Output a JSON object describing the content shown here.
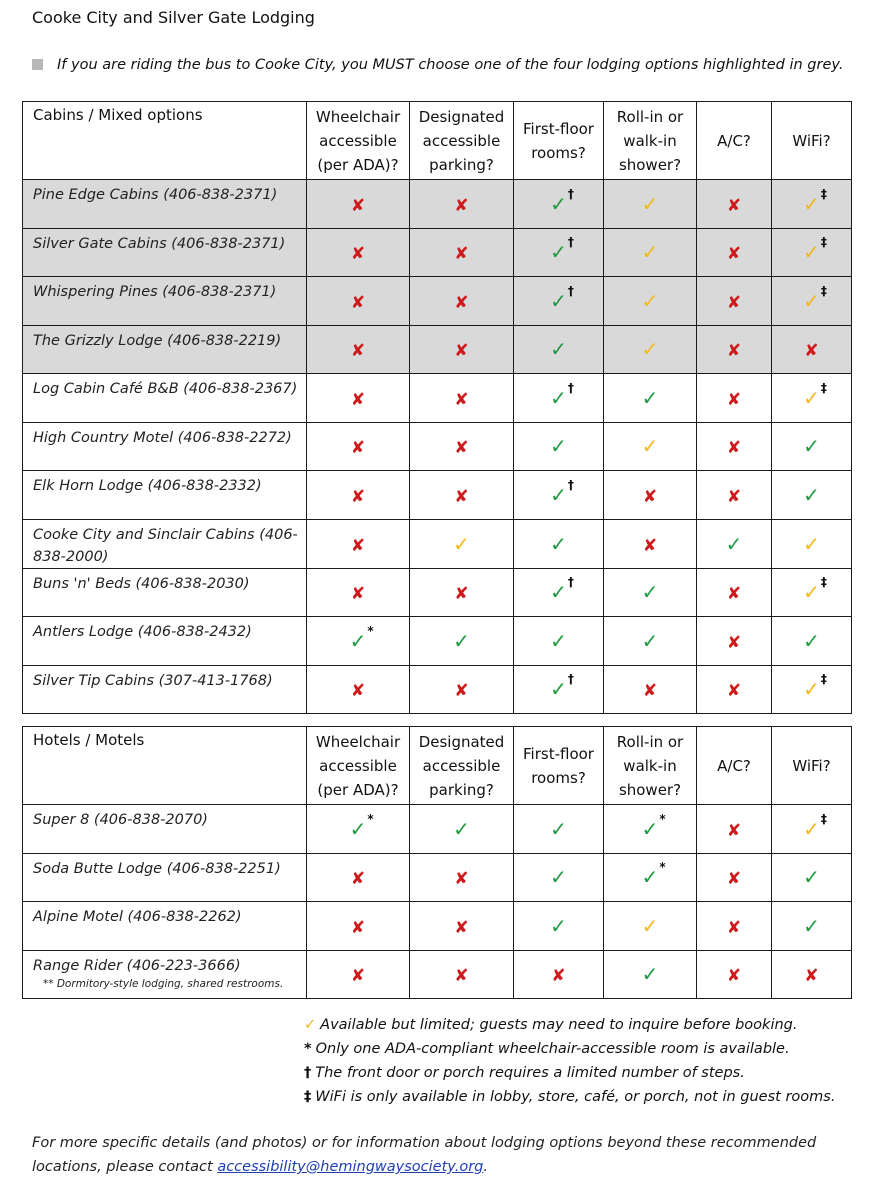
{
  "title": "Cooke City and Silver Gate Lodging",
  "note": "If you are riding the bus to Cooke City, you MUST choose one of the four lodging options highlighted in grey.",
  "headers": [
    "Wheelchair accessible (per ADA)?",
    "Designated accessible parking?",
    "First-floor rooms?",
    "Roll-in or walk-in shower?",
    "A/C?",
    "WiFi?"
  ],
  "section1": {
    "title": "Cabins / Mixed options",
    "rows": [
      {
        "name": "Pine Edge Cabins (406-838-2371)",
        "grey": true,
        "cells": [
          "no",
          "no",
          "yes†",
          "ltd",
          "no",
          "ltd‡"
        ]
      },
      {
        "name": "Silver Gate Cabins (406-838-2371)",
        "grey": true,
        "cells": [
          "no",
          "no",
          "yes†",
          "ltd",
          "no",
          "ltd‡"
        ]
      },
      {
        "name": "Whispering Pines (406-838-2371)",
        "grey": true,
        "cells": [
          "no",
          "no",
          "yes†",
          "ltd",
          "no",
          "ltd‡"
        ]
      },
      {
        "name": "The Grizzly Lodge (406-838-2219)",
        "grey": true,
        "cells": [
          "no",
          "no",
          "yes",
          "ltd",
          "no",
          "no"
        ]
      },
      {
        "name": "Log Cabin Café B&B (406-838-2367)",
        "grey": false,
        "cells": [
          "no",
          "no",
          "yes†",
          "yes",
          "no",
          "ltd‡"
        ]
      },
      {
        "name": "High Country Motel (406-838-2272)",
        "grey": false,
        "cells": [
          "no",
          "no",
          "yes",
          "ltd",
          "no",
          "yes"
        ]
      },
      {
        "name": "Elk Horn Lodge (406-838-2332)",
        "grey": false,
        "cells": [
          "no",
          "no",
          "yes†",
          "no",
          "no",
          "yes"
        ]
      },
      {
        "name": "Cooke City and Sinclair Cabins (406-838-2000)",
        "grey": false,
        "cells": [
          "no",
          "ltd",
          "yes",
          "no",
          "yes",
          "ltd"
        ]
      },
      {
        "name": "Buns 'n' Beds (406-838-2030)",
        "grey": false,
        "cells": [
          "no",
          "no",
          "yes†",
          "yes",
          "no",
          "ltd‡"
        ]
      },
      {
        "name": "Antlers Lodge (406-838-2432)",
        "grey": false,
        "cells": [
          "yes*",
          "yes",
          "yes",
          "yes",
          "no",
          "yes"
        ]
      },
      {
        "name": "Silver Tip Cabins (307-413-1768)",
        "grey": false,
        "cells": [
          "no",
          "no",
          "yes†",
          "no",
          "no",
          "ltd‡"
        ]
      }
    ]
  },
  "section2": {
    "title": "Hotels / Motels",
    "rows": [
      {
        "name": "Super 8 (406-838-2070)",
        "cells": [
          "yes*",
          "yes",
          "yes",
          "yes*",
          "no",
          "ltd‡"
        ]
      },
      {
        "name": "Soda Butte Lodge (406-838-2251)",
        "cells": [
          "no",
          "no",
          "yes",
          "yes*",
          "no",
          "yes"
        ]
      },
      {
        "name": "Alpine Motel (406-838-2262)",
        "cells": [
          "no",
          "no",
          "yes",
          "ltd",
          "no",
          "yes"
        ]
      },
      {
        "name": "Range Rider (406-223-3666)",
        "sub": "** Dormitory-style lodging, shared restrooms.",
        "cells": [
          "no",
          "no",
          "no",
          "yes",
          "no",
          "no"
        ]
      }
    ]
  },
  "legend": {
    "limited_symbol": "✓",
    "limited_text": "Available but limited; guests may need to inquire before booking.",
    "star_symbol": "*",
    "star_text": "Only one ADA-compliant wheelchair-accessible room is available.",
    "dagger_symbol": "†",
    "dagger_text": "The front door or porch requires a limited number of steps.",
    "ddagger_symbol": "‡",
    "ddagger_text": "WiFi is only available in lobby, store, café, or porch, not in guest rooms."
  },
  "footer": {
    "text": "For more specific details (and photos) or for information about lodging options beyond these recommended locations, please contact ",
    "email": "accessibility@hemingwaysociety.org",
    "end": "."
  },
  "colors": {
    "yes": "#1d9a3f",
    "limited": "#f3b81a",
    "no": "#d0191b",
    "grey_row": "#d9d9d9"
  }
}
